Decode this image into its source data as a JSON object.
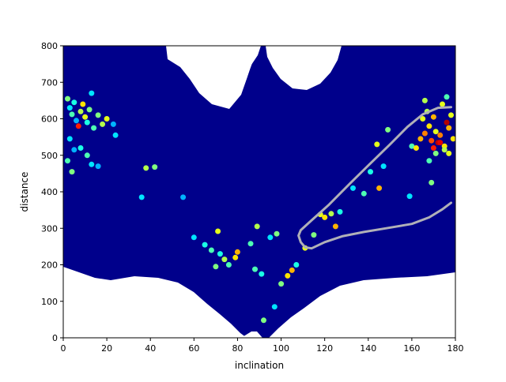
{
  "chart_data": {
    "type": "scatter",
    "title": "",
    "xlabel": "inclination",
    "ylabel": "distance",
    "xlim": [
      0,
      180
    ],
    "ylim": [
      0,
      800
    ],
    "xticks": [
      0,
      20,
      40,
      60,
      80,
      100,
      120,
      140,
      160,
      180
    ],
    "yticks": [
      0,
      100,
      200,
      300,
      400,
      500,
      600,
      700,
      800
    ],
    "xtick_labels": [
      "0",
      "20",
      "40",
      "60",
      "80",
      "100",
      "120",
      "140",
      "160",
      "180"
    ],
    "ytick_labels": [
      "0",
      "100",
      "200",
      "300",
      "400",
      "500",
      "600",
      "700",
      "800"
    ],
    "grid": false,
    "colormap": "jet",
    "colors": {
      "background_density": "#00008b",
      "contour": "#b0b0b8"
    },
    "contour_line": [
      [
        178,
        370
      ],
      [
        174,
        352
      ],
      [
        168,
        330
      ],
      [
        160,
        312
      ],
      [
        148,
        300
      ],
      [
        138,
        290
      ],
      [
        128,
        278
      ],
      [
        120,
        262
      ],
      [
        114,
        245
      ],
      [
        111,
        248
      ],
      [
        109,
        262
      ],
      [
        108,
        280
      ],
      [
        109,
        295
      ],
      [
        114,
        322
      ],
      [
        122,
        365
      ],
      [
        132,
        425
      ],
      [
        140,
        472
      ],
      [
        150,
        530
      ],
      [
        158,
        578
      ],
      [
        165,
        612
      ],
      [
        172,
        630
      ],
      [
        178,
        632
      ]
    ],
    "highlight_points": [
      {
        "x": 2,
        "y": 655,
        "c": 0.5
      },
      {
        "x": 3,
        "y": 630,
        "c": 0.35
      },
      {
        "x": 4,
        "y": 612,
        "c": 0.45
      },
      {
        "x": 5,
        "y": 645,
        "c": 0.4
      },
      {
        "x": 6,
        "y": 595,
        "c": 0.3
      },
      {
        "x": 7,
        "y": 580,
        "c": 0.85
      },
      {
        "x": 8,
        "y": 620,
        "c": 0.55
      },
      {
        "x": 9,
        "y": 640,
        "c": 0.65
      },
      {
        "x": 10,
        "y": 605,
        "c": 0.6
      },
      {
        "x": 11,
        "y": 590,
        "c": 0.4
      },
      {
        "x": 12,
        "y": 625,
        "c": 0.5
      },
      {
        "x": 13,
        "y": 670,
        "c": 0.35
      },
      {
        "x": 14,
        "y": 575,
        "c": 0.45
      },
      {
        "x": 16,
        "y": 610,
        "c": 0.5
      },
      {
        "x": 18,
        "y": 585,
        "c": 0.55
      },
      {
        "x": 20,
        "y": 600,
        "c": 0.6
      },
      {
        "x": 3,
        "y": 545,
        "c": 0.35
      },
      {
        "x": 5,
        "y": 515,
        "c": 0.3
      },
      {
        "x": 2,
        "y": 485,
        "c": 0.45
      },
      {
        "x": 4,
        "y": 455,
        "c": 0.5
      },
      {
        "x": 8,
        "y": 520,
        "c": 0.4
      },
      {
        "x": 11,
        "y": 500,
        "c": 0.45
      },
      {
        "x": 13,
        "y": 475,
        "c": 0.35
      },
      {
        "x": 16,
        "y": 470,
        "c": 0.3
      },
      {
        "x": 23,
        "y": 585,
        "c": 0.3
      },
      {
        "x": 24,
        "y": 555,
        "c": 0.35
      },
      {
        "x": 38,
        "y": 465,
        "c": 0.55
      },
      {
        "x": 42,
        "y": 468,
        "c": 0.5
      },
      {
        "x": 36,
        "y": 385,
        "c": 0.35
      },
      {
        "x": 55,
        "y": 385,
        "c": 0.3
      },
      {
        "x": 60,
        "y": 275,
        "c": 0.35
      },
      {
        "x": 65,
        "y": 255,
        "c": 0.4
      },
      {
        "x": 68,
        "y": 240,
        "c": 0.45
      },
      {
        "x": 71,
        "y": 292,
        "c": 0.6
      },
      {
        "x": 72,
        "y": 230,
        "c": 0.4
      },
      {
        "x": 74,
        "y": 215,
        "c": 0.55
      },
      {
        "x": 76,
        "y": 200,
        "c": 0.45
      },
      {
        "x": 79,
        "y": 220,
        "c": 0.65
      },
      {
        "x": 80,
        "y": 235,
        "c": 0.7
      },
      {
        "x": 70,
        "y": 195,
        "c": 0.5
      },
      {
        "x": 86,
        "y": 258,
        "c": 0.45
      },
      {
        "x": 89,
        "y": 305,
        "c": 0.55
      },
      {
        "x": 95,
        "y": 275,
        "c": 0.35
      },
      {
        "x": 98,
        "y": 285,
        "c": 0.5
      },
      {
        "x": 88,
        "y": 188,
        "c": 0.45
      },
      {
        "x": 91,
        "y": 175,
        "c": 0.4
      },
      {
        "x": 103,
        "y": 170,
        "c": 0.65
      },
      {
        "x": 105,
        "y": 185,
        "c": 0.7
      },
      {
        "x": 100,
        "y": 148,
        "c": 0.5
      },
      {
        "x": 107,
        "y": 200,
        "c": 0.4
      },
      {
        "x": 97,
        "y": 85,
        "c": 0.35
      },
      {
        "x": 92,
        "y": 48,
        "c": 0.5
      },
      {
        "x": 111,
        "y": 246,
        "c": 0.6
      },
      {
        "x": 115,
        "y": 282,
        "c": 0.5
      },
      {
        "x": 118,
        "y": 338,
        "c": 0.6
      },
      {
        "x": 120,
        "y": 330,
        "c": 0.65
      },
      {
        "x": 123,
        "y": 340,
        "c": 0.55
      },
      {
        "x": 125,
        "y": 305,
        "c": 0.7
      },
      {
        "x": 127,
        "y": 345,
        "c": 0.4
      },
      {
        "x": 133,
        "y": 410,
        "c": 0.35
      },
      {
        "x": 138,
        "y": 395,
        "c": 0.45
      },
      {
        "x": 141,
        "y": 455,
        "c": 0.4
      },
      {
        "x": 145,
        "y": 410,
        "c": 0.7
      },
      {
        "x": 147,
        "y": 470,
        "c": 0.35
      },
      {
        "x": 149,
        "y": 570,
        "c": 0.5
      },
      {
        "x": 144,
        "y": 530,
        "c": 0.6
      },
      {
        "x": 159,
        "y": 388,
        "c": 0.35
      },
      {
        "x": 160,
        "y": 525,
        "c": 0.45
      },
      {
        "x": 162,
        "y": 520,
        "c": 0.65
      },
      {
        "x": 164,
        "y": 545,
        "c": 0.7
      },
      {
        "x": 165,
        "y": 600,
        "c": 0.6
      },
      {
        "x": 166,
        "y": 560,
        "c": 0.75
      },
      {
        "x": 167,
        "y": 620,
        "c": 0.55
      },
      {
        "x": 168,
        "y": 580,
        "c": 0.65
      },
      {
        "x": 169,
        "y": 540,
        "c": 0.8
      },
      {
        "x": 170,
        "y": 605,
        "c": 0.7
      },
      {
        "x": 171,
        "y": 565,
        "c": 0.6
      },
      {
        "x": 172,
        "y": 535,
        "c": 0.95
      },
      {
        "x": 173,
        "y": 555,
        "c": 0.75
      },
      {
        "x": 174,
        "y": 640,
        "c": 0.6
      },
      {
        "x": 175,
        "y": 525,
        "c": 0.65
      },
      {
        "x": 176,
        "y": 590,
        "c": 0.95
      },
      {
        "x": 177,
        "y": 575,
        "c": 0.7
      },
      {
        "x": 178,
        "y": 610,
        "c": 0.6
      },
      {
        "x": 179,
        "y": 545,
        "c": 0.65
      },
      {
        "x": 171,
        "y": 505,
        "c": 0.5
      },
      {
        "x": 175,
        "y": 515,
        "c": 0.55
      },
      {
        "x": 168,
        "y": 485,
        "c": 0.45
      },
      {
        "x": 169,
        "y": 425,
        "c": 0.5
      },
      {
        "x": 166,
        "y": 650,
        "c": 0.55
      },
      {
        "x": 176,
        "y": 660,
        "c": 0.45
      },
      {
        "x": 173,
        "y": 535,
        "c": 0.9
      },
      {
        "x": 170,
        "y": 520,
        "c": 0.85
      },
      {
        "x": 177,
        "y": 505,
        "c": 0.6
      }
    ],
    "background_notes": "dense dark-blue point cloud covering most of the plot area"
  }
}
